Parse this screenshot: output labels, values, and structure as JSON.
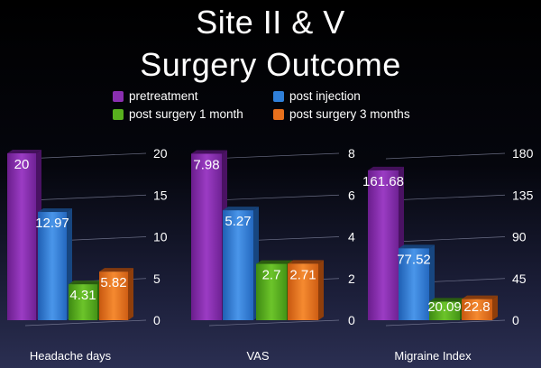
{
  "title_line1": "Site II & V",
  "title_line2": "Surgery Outcome",
  "legend": [
    {
      "label": "pretreatment",
      "color": "#8a2fb0"
    },
    {
      "label": "post injection",
      "color": "#2f7fd8"
    },
    {
      "label": "post surgery 1 month",
      "color": "#58b01e"
    },
    {
      "label": "post surgery 3 months",
      "color": "#e8701c"
    }
  ],
  "chart_data": [
    {
      "type": "bar",
      "xlabel": "Headache days",
      "ylim": [
        0,
        20
      ],
      "yticks": [
        "0",
        "5",
        "10",
        "15",
        "20"
      ],
      "series": [
        {
          "name": "pretreatment",
          "values": [
            20
          ],
          "labels": [
            "20"
          ]
        },
        {
          "name": "post injection",
          "values": [
            12.97
          ],
          "labels": [
            "12.97"
          ]
        },
        {
          "name": "post surgery 1 month",
          "values": [
            4.31
          ],
          "labels": [
            "4.31"
          ]
        },
        {
          "name": "post surgery 3 months",
          "values": [
            5.82
          ],
          "labels": [
            "5.82"
          ]
        }
      ]
    },
    {
      "type": "bar",
      "xlabel": "VAS",
      "ylim": [
        0,
        8
      ],
      "yticks": [
        "0",
        "2",
        "4",
        "6",
        "8"
      ],
      "series": [
        {
          "name": "pretreatment",
          "values": [
            7.98
          ],
          "labels": [
            "7.98"
          ]
        },
        {
          "name": "post injection",
          "values": [
            5.27
          ],
          "labels": [
            "5.27"
          ]
        },
        {
          "name": "post surgery 1 month",
          "values": [
            2.7
          ],
          "labels": [
            "2.7"
          ]
        },
        {
          "name": "post surgery 3 months",
          "values": [
            2.71
          ],
          "labels": [
            "2.71"
          ]
        }
      ]
    },
    {
      "type": "bar",
      "xlabel": "Migraine Index",
      "ylim": [
        0,
        180
      ],
      "yticks": [
        "0",
        "45",
        "90",
        "135",
        "180"
      ],
      "series": [
        {
          "name": "pretreatment",
          "values": [
            161.68
          ],
          "labels": [
            "161.68"
          ]
        },
        {
          "name": "post injection",
          "values": [
            77.52
          ],
          "labels": [
            "77.52"
          ]
        },
        {
          "name": "post surgery 1 month",
          "values": [
            20.09
          ],
          "labels": [
            "20.09"
          ]
        },
        {
          "name": "post surgery 3 months",
          "values": [
            22.8
          ],
          "labels": [
            "22.8"
          ]
        }
      ]
    }
  ]
}
